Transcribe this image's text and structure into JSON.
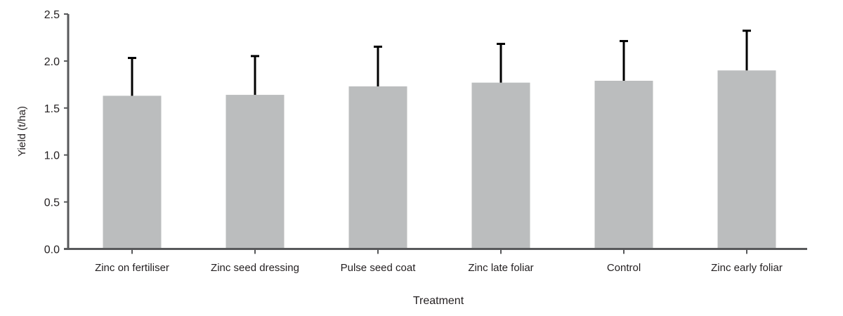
{
  "chart_data": {
    "type": "bar",
    "title": "",
    "xlabel": "Treatment",
    "ylabel": "Yield (t/ha)",
    "ylim": [
      0,
      2.5
    ],
    "yticks": [
      "0.0",
      "0.5",
      "1.0",
      "1.5",
      "2.0",
      "2.5"
    ],
    "grid": false,
    "categories": [
      "Zinc on fertiliser",
      "Zinc seed dressing",
      "Pulse seed coat",
      "Zinc late foliar",
      "Control",
      "Zinc early foliar"
    ],
    "values": [
      1.63,
      1.64,
      1.73,
      1.77,
      1.79,
      1.9
    ],
    "error_upper": [
      2.04,
      2.06,
      2.16,
      2.19,
      2.22,
      2.33
    ],
    "colors": {
      "bar": "#bbbdbe",
      "error": "#000000",
      "axis": "#58595b"
    }
  }
}
